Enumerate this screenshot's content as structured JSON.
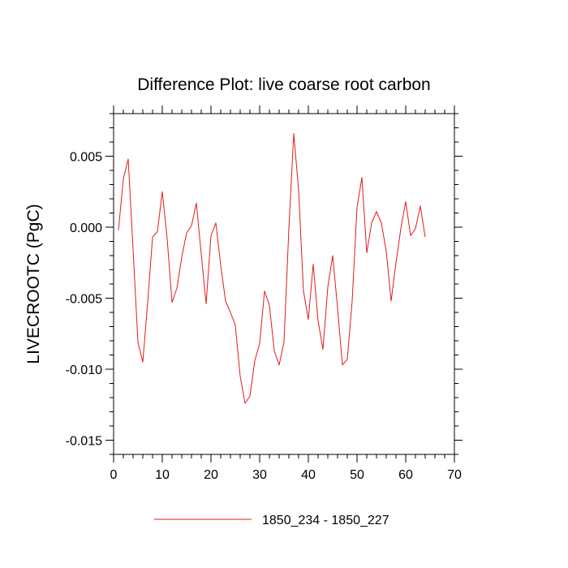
{
  "chart_data": {
    "type": "line",
    "title": "Difference Plot: live coarse root carbon",
    "xlabel": "",
    "ylabel": "LIVECROOTC  (PgC)",
    "xlim": [
      0,
      70
    ],
    "ylim": [
      -0.016,
      0.008
    ],
    "x_ticks": [
      0,
      10,
      20,
      30,
      40,
      50,
      60,
      70
    ],
    "x_tick_labels": [
      "0",
      "10",
      "20",
      "30",
      "40",
      "50",
      "60",
      "70"
    ],
    "y_ticks": [
      -0.015,
      -0.01,
      -0.005,
      0.0,
      0.005
    ],
    "y_tick_labels": [
      "-0.015",
      "-0.010",
      "-0.005",
      "0.000",
      "0.005"
    ],
    "grid": false,
    "legend_position": "bottom-center",
    "series": [
      {
        "name": "1850_234 - 1850_227",
        "color": "#e41a1c",
        "x": [
          1,
          2,
          3,
          4,
          5,
          6,
          7,
          8,
          9,
          10,
          11,
          12,
          13,
          14,
          15,
          16,
          17,
          18,
          19,
          20,
          21,
          22,
          23,
          24,
          25,
          26,
          27,
          28,
          29,
          30,
          31,
          32,
          33,
          34,
          35,
          36,
          37,
          38,
          39,
          40,
          41,
          42,
          43,
          44,
          45,
          46,
          47,
          48,
          49,
          50,
          51,
          52,
          53,
          54,
          55,
          56,
          57,
          58,
          59,
          60,
          61,
          62,
          63,
          64
        ],
        "values": [
          -0.0002,
          0.0034,
          0.0048,
          -0.0016,
          -0.0081,
          -0.0095,
          -0.0053,
          -0.0007,
          -0.0003,
          0.0025,
          -0.0008,
          -0.0053,
          -0.0043,
          -0.0021,
          -0.0004,
          0.0001,
          0.0017,
          -0.0019,
          -0.0054,
          -0.0006,
          0.0003,
          -0.0027,
          -0.0052,
          -0.006,
          -0.0069,
          -0.0105,
          -0.0124,
          -0.0119,
          -0.0094,
          -0.0082,
          -0.0045,
          -0.0055,
          -0.0087,
          -0.0097,
          -0.0081,
          -0.0001,
          0.0066,
          0.0026,
          -0.0045,
          -0.0065,
          -0.0026,
          -0.0066,
          -0.0086,
          -0.0042,
          -0.002,
          -0.0057,
          -0.0097,
          -0.0093,
          -0.0052,
          0.0014,
          0.0035,
          -0.0018,
          0.0003,
          0.0011,
          0.0003,
          -0.0017,
          -0.0052,
          -0.0025,
          -0.0001,
          0.0018,
          -0.0006,
          -0.0001,
          0.0015,
          -0.0007
        ]
      }
    ]
  }
}
